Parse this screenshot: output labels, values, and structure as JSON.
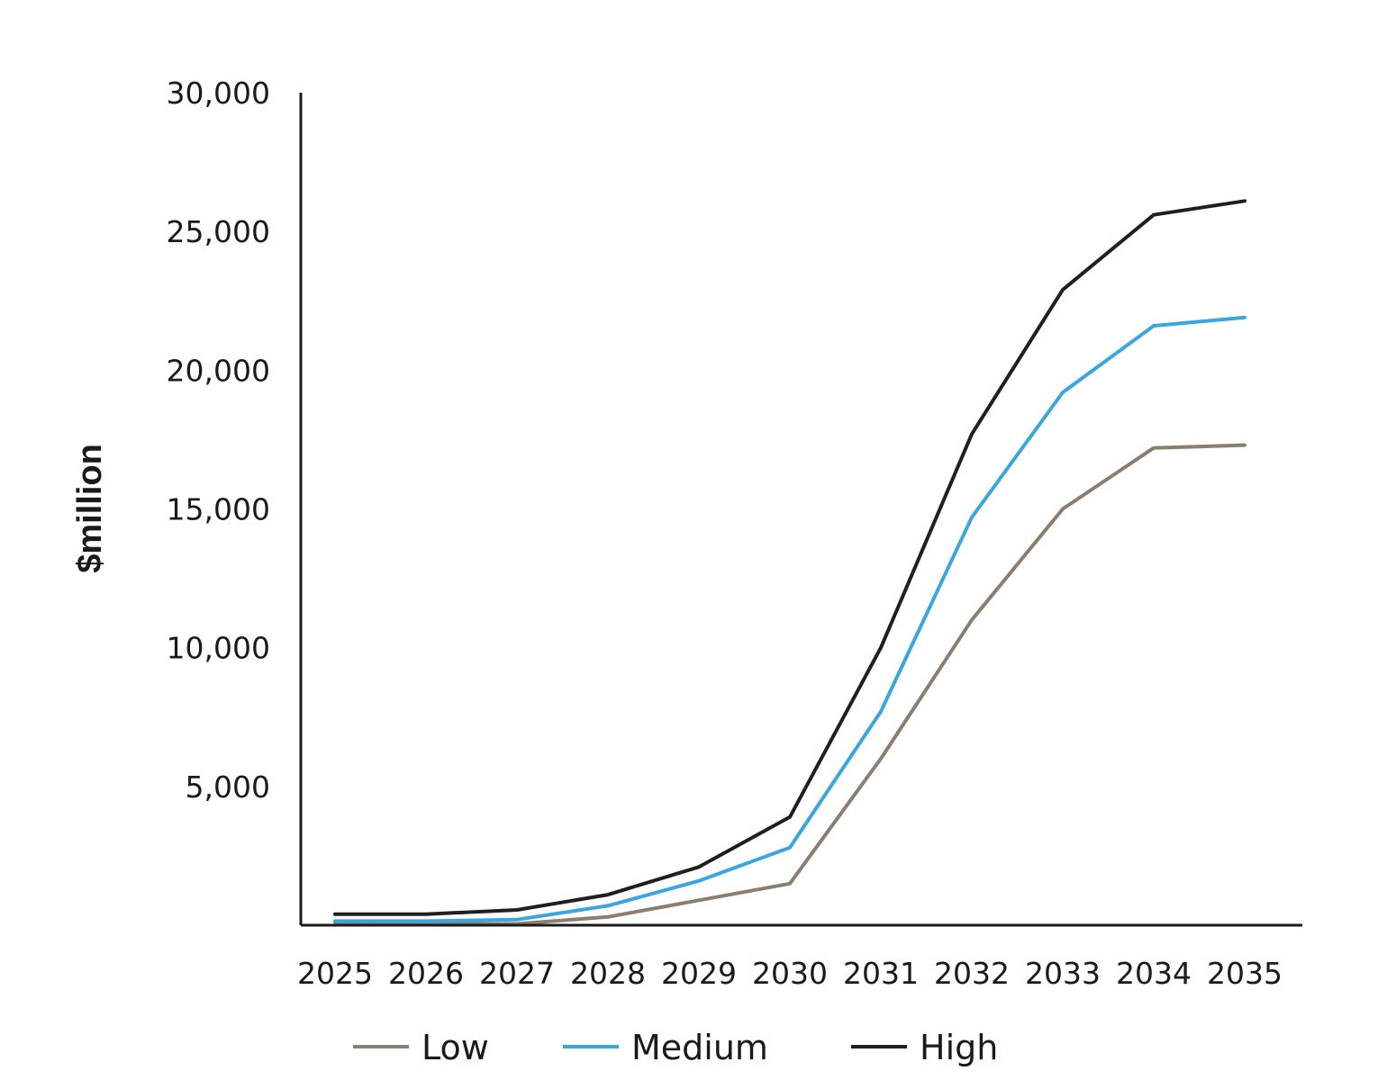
{
  "chart_data": {
    "type": "line",
    "title": "",
    "xlabel": "",
    "ylabel": "$million",
    "x": [
      "2025",
      "2026",
      "2027",
      "2028",
      "2029",
      "2030",
      "2031",
      "2032",
      "2033",
      "2034",
      "2035"
    ],
    "ylim": [
      0,
      30000
    ],
    "yticks": [
      5000,
      10000,
      15000,
      20000,
      25000,
      30000
    ],
    "ytick_labels": [
      "5,000",
      "10,000",
      "15,000",
      "20,000",
      "25,000",
      "30,000"
    ],
    "grid": false,
    "legend_position": "bottom",
    "series": [
      {
        "name": "Low",
        "color": "#8b7d70",
        "values": [
          100,
          50,
          50,
          300,
          900,
          1500,
          6000,
          11000,
          15000,
          17200,
          17300
        ]
      },
      {
        "name": "Medium",
        "color": "#3aa6dd",
        "values": [
          150,
          150,
          200,
          700,
          1600,
          2800,
          7700,
          14700,
          19200,
          21600,
          21900
        ]
      },
      {
        "name": "High",
        "color": "#1f1f1f",
        "values": [
          400,
          400,
          550,
          1100,
          2100,
          3900,
          10000,
          17700,
          22900,
          25600,
          26100
        ]
      }
    ]
  }
}
